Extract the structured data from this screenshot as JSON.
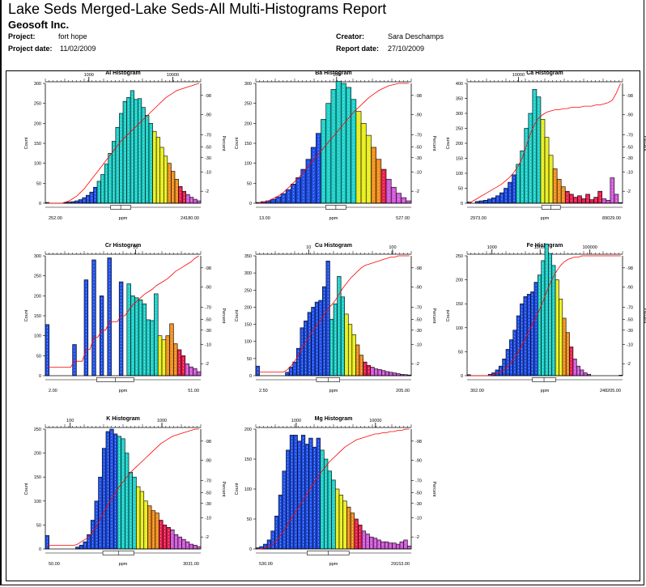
{
  "report": {
    "title": "Lake Seds Merged-Lake Seds-All Multi-Histograms Report",
    "company": "Geosoft Inc.",
    "project_label": "Project:",
    "project": "fort hope",
    "project_date_label": "Project date:",
    "project_date": "11/02/2009",
    "creator_label": "Creator:",
    "creator": "Sara Deschamps",
    "report_date_label": "Report date:",
    "report_date": "27/10/2009"
  },
  "palette": [
    "#1f4fe6",
    "#1f4fe6",
    "#1fcfc8",
    "#e8ee1f",
    "#ee8f1f",
    "#e61f4f",
    "#d05ad8"
  ],
  "chart_data": [
    {
      "type": "bar",
      "title": "Al Histogram",
      "xlabel": "ppm",
      "ylabel": "Count",
      "y2label": "Percent",
      "xmin_label": "252.00",
      "xmax_label": "24180.00",
      "top_ticks": [
        "1000",
        "10000"
      ],
      "top_tick_pos": [
        0.28,
        0.82
      ],
      "ylim": [
        0,
        300
      ],
      "yticks": [
        0,
        50,
        100,
        150,
        200,
        250,
        300
      ],
      "percent_ticks": [
        "98",
        "90",
        "70",
        "50",
        "30",
        "10",
        "2"
      ],
      "values": [
        2,
        0,
        0,
        0,
        0,
        2,
        3,
        4,
        6,
        9,
        14,
        20,
        28,
        40,
        55,
        72,
        98,
        125,
        155,
        190,
        225,
        255,
        265,
        282,
        260,
        262,
        240,
        220,
        200,
        180,
        165,
        140,
        118,
        100,
        80,
        60,
        42,
        30,
        22,
        15,
        10,
        6
      ],
      "color_breaks": [
        14,
        29,
        33,
        36,
        38,
        41
      ],
      "cumulative": [
        0.0,
        0.0,
        0.0,
        0.0,
        0.0,
        0.01,
        0.02,
        0.04,
        0.06,
        0.09,
        0.12,
        0.16,
        0.2,
        0.24,
        0.28,
        0.32,
        0.36,
        0.4,
        0.44,
        0.48,
        0.52,
        0.55,
        0.58,
        0.61,
        0.64,
        0.67,
        0.7,
        0.73,
        0.76,
        0.79,
        0.82,
        0.85,
        0.88,
        0.9,
        0.92,
        0.94,
        0.95,
        0.96,
        0.97,
        0.98,
        0.99,
        1.0
      ],
      "box_range": [
        0.42,
        0.55
      ]
    },
    {
      "type": "bar",
      "title": "Ba Histogram",
      "xlabel": "ppm",
      "ylabel": "Count",
      "y2label": "Percent",
      "xmin_label": "13.00",
      "xmax_label": "527.00",
      "top_ticks": [
        "100"
      ],
      "top_tick_pos": [
        0.52
      ],
      "ylim": [
        0,
        300
      ],
      "yticks": [
        0,
        50,
        100,
        150,
        200,
        250,
        300
      ],
      "percent_ticks": [
        "98",
        "90",
        "70",
        "50",
        "30",
        "10",
        "2"
      ],
      "values": [
        2,
        4,
        6,
        10,
        16,
        24,
        34,
        48,
        64,
        85,
        110,
        140,
        175,
        210,
        250,
        285,
        305,
        300,
        290,
        260,
        230,
        200,
        170,
        140,
        110,
        85,
        60,
        40,
        25,
        14,
        6
      ],
      "color_breaks": [
        13,
        20,
        23,
        25,
        26,
        30
      ],
      "cumulative": [
        0.0,
        0.01,
        0.02,
        0.04,
        0.06,
        0.09,
        0.13,
        0.17,
        0.21,
        0.26,
        0.31,
        0.36,
        0.41,
        0.46,
        0.51,
        0.56,
        0.61,
        0.66,
        0.71,
        0.76,
        0.8,
        0.84,
        0.88,
        0.91,
        0.94,
        0.96,
        0.98,
        0.99,
        1.0,
        1.0,
        1.0
      ],
      "box_range": [
        0.45,
        0.58
      ]
    },
    {
      "type": "bar",
      "title": "Ca Histogram",
      "xlabel": "ppm",
      "ylabel": "Count",
      "y2label": "Percent",
      "xmin_label": "2973.00",
      "xmax_label": "89029.00",
      "top_ticks": [
        "10000"
      ],
      "top_tick_pos": [
        0.33
      ],
      "ylim": [
        0,
        400
      ],
      "yticks": [
        0,
        50,
        100,
        150,
        200,
        250,
        300,
        350,
        400
      ],
      "percent_ticks": [
        "98",
        "90",
        "70",
        "50",
        "30",
        "10",
        "2"
      ],
      "values": [
        4,
        0,
        6,
        8,
        10,
        14,
        18,
        25,
        35,
        50,
        70,
        95,
        130,
        175,
        250,
        300,
        380,
        355,
        280,
        220,
        160,
        115,
        80,
        55,
        40,
        30,
        20,
        25,
        15,
        30,
        12,
        20,
        40,
        15,
        10,
        85,
        30,
        2
      ],
      "color_breaks": [
        12,
        18,
        21,
        24,
        33,
        38
      ],
      "cumulative": [
        0.0,
        0.02,
        0.04,
        0.06,
        0.08,
        0.1,
        0.12,
        0.14,
        0.16,
        0.19,
        0.22,
        0.26,
        0.31,
        0.38,
        0.48,
        0.58,
        0.66,
        0.71,
        0.74,
        0.76,
        0.77,
        0.78,
        0.78,
        0.79,
        0.79,
        0.8,
        0.8,
        0.8,
        0.81,
        0.81,
        0.81,
        0.82,
        0.82,
        0.83,
        0.84,
        0.86,
        0.92,
        1.0
      ],
      "box_range": [
        0.48,
        0.6
      ]
    },
    {
      "type": "bar",
      "title": "Cr Histogram",
      "xlabel": "ppm",
      "ylabel": "Count",
      "y2label": "Percent",
      "xmin_label": "2.00",
      "xmax_label": "51.00",
      "top_ticks": [
        "10"
      ],
      "top_tick_pos": [
        0.58
      ],
      "ylim": [
        0,
        300
      ],
      "yticks": [
        0,
        50,
        100,
        150,
        200,
        250,
        300
      ],
      "percent_ticks": [
        "98",
        "90",
        "70",
        "50",
        "30",
        "10",
        "2"
      ],
      "values": [
        128,
        0,
        0,
        0,
        0,
        0,
        0,
        78,
        0,
        0,
        240,
        0,
        290,
        0,
        200,
        0,
        295,
        0,
        0,
        235,
        0,
        230,
        200,
        195,
        190,
        180,
        140,
        138,
        205,
        100,
        90,
        100,
        130,
        80,
        65,
        50,
        30,
        22,
        18,
        10
      ],
      "color_breaks": [
        21,
        29,
        31,
        34,
        36,
        40
      ],
      "cumulative": [
        0.07,
        0.07,
        0.07,
        0.07,
        0.07,
        0.07,
        0.07,
        0.12,
        0.12,
        0.12,
        0.22,
        0.22,
        0.32,
        0.32,
        0.38,
        0.38,
        0.45,
        0.45,
        0.45,
        0.5,
        0.5,
        0.55,
        0.59,
        0.62,
        0.65,
        0.68,
        0.7,
        0.72,
        0.75,
        0.77,
        0.79,
        0.81,
        0.84,
        0.87,
        0.89,
        0.91,
        0.93,
        0.95,
        0.98,
        1.0
      ],
      "box_range": [
        0.33,
        0.57
      ]
    },
    {
      "type": "bar",
      "title": "Cu Histogram",
      "xlabel": "ppm",
      "ylabel": "Count",
      "y2label": "Percent",
      "xmin_label": "2.50",
      "xmax_label": "205.00",
      "top_ticks": [
        "10",
        "100"
      ],
      "top_tick_pos": [
        0.34,
        0.88
      ],
      "ylim": [
        0,
        350
      ],
      "yticks": [
        0,
        50,
        100,
        150,
        200,
        250,
        300,
        350
      ],
      "percent_ticks": [
        "98",
        "90",
        "70",
        "50",
        "30",
        "10",
        "2"
      ],
      "values": [
        28,
        0,
        0,
        0,
        0,
        0,
        0,
        0,
        10,
        25,
        40,
        80,
        140,
        160,
        185,
        200,
        215,
        220,
        260,
        335,
        165,
        210,
        290,
        230,
        180,
        150,
        120,
        90,
        60,
        40,
        30,
        25,
        20,
        18,
        15,
        12,
        10,
        8,
        6,
        4,
        3,
        2
      ],
      "color_breaks": [
        20,
        24,
        27,
        29,
        31,
        36
      ],
      "cumulative": [
        0.03,
        0.03,
        0.03,
        0.03,
        0.03,
        0.03,
        0.03,
        0.03,
        0.05,
        0.08,
        0.12,
        0.17,
        0.23,
        0.28,
        0.33,
        0.38,
        0.42,
        0.46,
        0.51,
        0.56,
        0.59,
        0.63,
        0.68,
        0.73,
        0.77,
        0.81,
        0.84,
        0.87,
        0.9,
        0.92,
        0.93,
        0.94,
        0.95,
        0.96,
        0.97,
        0.98,
        0.99,
        0.99,
        1.0,
        1.0,
        1.0,
        1.0
      ],
      "box_range": [
        0.39,
        0.54
      ]
    },
    {
      "type": "bar",
      "title": "Fe Histogram",
      "xlabel": "ppm",
      "ylabel": "Count",
      "y2label": "Percent",
      "xmin_label": "302.00",
      "xmax_label": "248205.00",
      "top_ticks": [
        "1000",
        "10000",
        "100000"
      ],
      "top_tick_pos": [
        0.16,
        0.47,
        0.79
      ],
      "ylim": [
        0,
        250
      ],
      "yticks": [
        0,
        50,
        100,
        150,
        200,
        250
      ],
      "percent_ticks": [
        "98",
        "90",
        "70",
        "50",
        "30",
        "10",
        "2"
      ],
      "values": [
        2,
        0,
        0,
        0,
        0,
        0,
        3,
        6,
        12,
        20,
        35,
        55,
        75,
        95,
        125,
        150,
        165,
        170,
        175,
        195,
        210,
        240,
        275,
        255,
        230,
        200,
        160,
        120,
        90,
        60,
        35,
        20,
        12,
        6,
        3,
        0,
        0,
        0,
        0,
        0,
        0,
        0,
        0,
        1
      ],
      "color_breaks": [
        20,
        25,
        27,
        29,
        30,
        44
      ],
      "cumulative": [
        0.0,
        0.0,
        0.0,
        0.0,
        0.0,
        0.0,
        0.0,
        0.01,
        0.02,
        0.03,
        0.05,
        0.08,
        0.11,
        0.15,
        0.2,
        0.25,
        0.31,
        0.37,
        0.43,
        0.49,
        0.55,
        0.62,
        0.7,
        0.77,
        0.83,
        0.88,
        0.92,
        0.95,
        0.97,
        0.98,
        0.99,
        0.99,
        1.0,
        1.0,
        1.0,
        1.0,
        1.0,
        1.0,
        1.0,
        1.0,
        1.0,
        1.0,
        1.0,
        1.0
      ],
      "box_range": [
        0.42,
        0.57
      ]
    },
    {
      "type": "bar",
      "title": "K Histogram",
      "xlabel": "ppm",
      "ylabel": "Count",
      "y2label": "Percent",
      "xmin_label": "50.00",
      "xmax_label": "3031.00",
      "top_ticks": [
        "100",
        "1000"
      ],
      "top_tick_pos": [
        0.16,
        0.75
      ],
      "ylim": [
        0,
        250
      ],
      "yticks": [
        0,
        50,
        100,
        150,
        200,
        250
      ],
      "percent_ticks": [
        "98",
        "90",
        "70",
        "50",
        "30",
        "10",
        "2"
      ],
      "values": [
        28,
        0,
        0,
        0,
        0,
        0,
        0,
        0,
        4,
        8,
        15,
        30,
        60,
        100,
        150,
        210,
        245,
        250,
        240,
        235,
        230,
        200,
        160,
        150,
        130,
        120,
        100,
        90,
        80,
        75,
        60,
        50,
        45,
        40,
        30,
        25,
        20,
        15,
        10,
        8,
        5
      ],
      "color_breaks": [
        19,
        24,
        27,
        30,
        33,
        41
      ],
      "cumulative": [
        0.03,
        0.03,
        0.03,
        0.03,
        0.03,
        0.03,
        0.03,
        0.03,
        0.04,
        0.06,
        0.08,
        0.1,
        0.14,
        0.19,
        0.25,
        0.31,
        0.37,
        0.42,
        0.47,
        0.52,
        0.56,
        0.6,
        0.64,
        0.67,
        0.7,
        0.73,
        0.76,
        0.79,
        0.82,
        0.85,
        0.88,
        0.9,
        0.92,
        0.94,
        0.95,
        0.96,
        0.97,
        0.98,
        0.99,
        1.0,
        1.0
      ],
      "box_range": [
        0.37,
        0.57
      ]
    },
    {
      "type": "bar",
      "title": "Mg Histogram",
      "xlabel": "ppm",
      "ylabel": "Count",
      "y2label": "Percent",
      "xmin_label": "530.00",
      "xmax_label": "29153.00",
      "top_ticks": [
        "1000",
        "10000"
      ],
      "top_tick_pos": [
        0.26,
        0.77
      ],
      "ylim": [
        0,
        200
      ],
      "yticks": [
        0,
        50,
        100,
        150,
        200
      ],
      "percent_ticks": [
        "98",
        "90",
        "70",
        "50",
        "30",
        "10",
        "2"
      ],
      "values": [
        2,
        4,
        8,
        15,
        30,
        55,
        90,
        130,
        165,
        190,
        190,
        180,
        190,
        175,
        185,
        170,
        185,
        165,
        150,
        130,
        115,
        100,
        90,
        80,
        70,
        60,
        50,
        40,
        30,
        25,
        20,
        18,
        15,
        12,
        12,
        10,
        10,
        8,
        12,
        15,
        5
      ],
      "color_breaks": [
        17,
        21,
        24,
        26,
        28,
        41
      ],
      "cumulative": [
        0.0,
        0.0,
        0.01,
        0.02,
        0.04,
        0.07,
        0.11,
        0.16,
        0.21,
        0.26,
        0.31,
        0.36,
        0.41,
        0.46,
        0.51,
        0.56,
        0.61,
        0.65,
        0.69,
        0.73,
        0.76,
        0.79,
        0.82,
        0.85,
        0.87,
        0.89,
        0.91,
        0.92,
        0.93,
        0.94,
        0.95,
        0.96,
        0.96,
        0.97,
        0.97,
        0.98,
        0.98,
        0.99,
        0.99,
        1.0,
        1.0
      ],
      "box_range": [
        0.33,
        0.6
      ]
    }
  ]
}
